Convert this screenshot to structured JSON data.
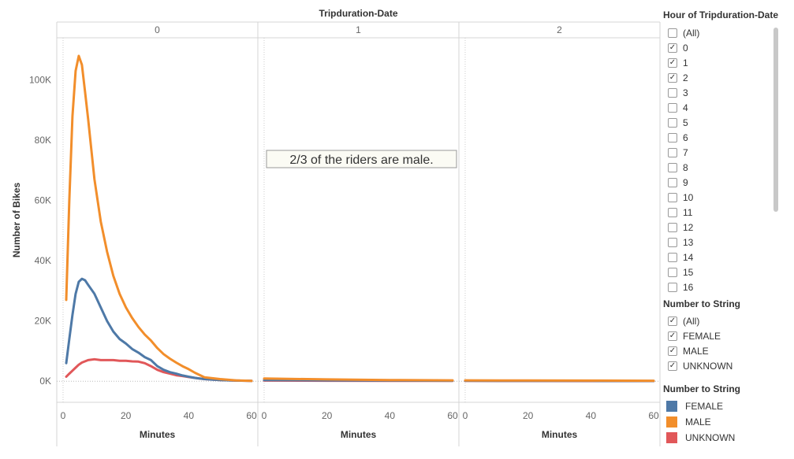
{
  "chart_data": {
    "type": "line",
    "title": "Tripduration-Date",
    "xlabel": "Minutes",
    "ylabel": "Number of Bikes",
    "panels": [
      "0",
      "1",
      "2"
    ],
    "xlim": [
      -2,
      62
    ],
    "ylim": [
      -7000,
      114000
    ],
    "xticks": [
      0,
      20,
      40,
      60
    ],
    "yticks": [
      0,
      20000,
      40000,
      60000,
      80000,
      100000
    ],
    "ytick_labels": [
      "0K",
      "20K",
      "40K",
      "60K",
      "80K",
      "100K"
    ],
    "annotation": "2/3 of the riders are male.",
    "series": [
      {
        "name": "FEMALE",
        "color": "#4e79a7",
        "panels": [
          {
            "x": [
              1,
              2,
              3,
              4,
              5,
              6,
              7,
              8,
              10,
              12,
              14,
              16,
              18,
              20,
              22,
              24,
              26,
              28,
              30,
              32,
              34,
              36,
              38,
              40,
              42,
              45,
              50,
              55,
              60
            ],
            "y": [
              6000,
              14000,
              22000,
              29000,
              33000,
              34000,
              33500,
              32000,
              29000,
              24500,
              20000,
              16500,
              14000,
              12500,
              10700,
              9500,
              8000,
              7000,
              5000,
              3800,
              3000,
              2500,
              1900,
              1500,
              1100,
              700,
              400,
              200,
              100
            ]
          },
          {
            "x": [
              0,
              20,
              40,
              60
            ],
            "y": [
              400,
              300,
              200,
              150
            ]
          },
          {
            "x": [
              0,
              20,
              40,
              60
            ],
            "y": [
              150,
              120,
              100,
              80
            ]
          }
        ]
      },
      {
        "name": "MALE",
        "color": "#f28e2b",
        "panels": [
          {
            "x": [
              1,
              2,
              3,
              4,
              5,
              6,
              7,
              8,
              9,
              10,
              12,
              14,
              16,
              18,
              20,
              22,
              24,
              26,
              28,
              30,
              32,
              34,
              36,
              38,
              40,
              42,
              45,
              50,
              55,
              60
            ],
            "y": [
              27000,
              60000,
              88000,
              103000,
              108000,
              105000,
              96000,
              87000,
              77000,
              67000,
              53000,
              43000,
              35000,
              29000,
              24500,
              21000,
              18000,
              15500,
              13500,
              11000,
              9000,
              7500,
              6200,
              5000,
              4000,
              2800,
              1300,
              700,
              300,
              100
            ]
          },
          {
            "x": [
              0,
              20,
              40,
              60
            ],
            "y": [
              900,
              600,
              400,
              300
            ]
          },
          {
            "x": [
              0,
              20,
              40,
              60
            ],
            "y": [
              300,
              250,
              200,
              150
            ]
          }
        ]
      },
      {
        "name": "UNKNOWN",
        "color": "#e15759",
        "panels": [
          {
            "x": [
              1,
              2,
              3,
              4,
              5,
              6,
              8,
              10,
              12,
              14,
              16,
              18,
              20,
              22,
              24,
              26,
              28,
              30,
              32,
              34,
              36,
              38,
              40,
              42,
              45,
              50,
              55,
              60
            ],
            "y": [
              1500,
              2500,
              3500,
              4500,
              5500,
              6200,
              7000,
              7300,
              7000,
              7000,
              7000,
              6800,
              6800,
              6600,
              6500,
              6000,
              5000,
              3800,
              3000,
              2500,
              2000,
              1700,
              1400,
              1100,
              700,
              400,
              200,
              100
            ]
          },
          {
            "x": [
              0,
              20,
              40,
              60
            ],
            "y": [
              200,
              150,
              100,
              100
            ]
          },
          {
            "x": [
              0,
              20,
              40,
              60
            ],
            "y": [
              100,
              80,
              60,
              50
            ]
          }
        ]
      }
    ]
  },
  "filters": {
    "hour": {
      "title": "Hour of Tripduration-Date",
      "items": [
        {
          "label": "(All)",
          "checked": false
        },
        {
          "label": "0",
          "checked": true
        },
        {
          "label": "1",
          "checked": true
        },
        {
          "label": "2",
          "checked": true
        },
        {
          "label": "3",
          "checked": false
        },
        {
          "label": "4",
          "checked": false
        },
        {
          "label": "5",
          "checked": false
        },
        {
          "label": "6",
          "checked": false
        },
        {
          "label": "7",
          "checked": false
        },
        {
          "label": "8",
          "checked": false
        },
        {
          "label": "9",
          "checked": false
        },
        {
          "label": "10",
          "checked": false
        },
        {
          "label": "11",
          "checked": false
        },
        {
          "label": "12",
          "checked": false
        },
        {
          "label": "13",
          "checked": false
        },
        {
          "label": "14",
          "checked": false
        },
        {
          "label": "15",
          "checked": false
        },
        {
          "label": "16",
          "checked": false
        }
      ]
    },
    "sex": {
      "title": "Number to String",
      "items": [
        {
          "label": "(All)",
          "checked": true
        },
        {
          "label": "FEMALE",
          "checked": true
        },
        {
          "label": "MALE",
          "checked": true
        },
        {
          "label": "UNKNOWN",
          "checked": true
        }
      ]
    }
  },
  "legend": {
    "title": "Number to String",
    "items": [
      {
        "label": "FEMALE",
        "color": "#4e79a7"
      },
      {
        "label": "MALE",
        "color": "#f28e2b"
      },
      {
        "label": "UNKNOWN",
        "color": "#e15759"
      }
    ]
  }
}
